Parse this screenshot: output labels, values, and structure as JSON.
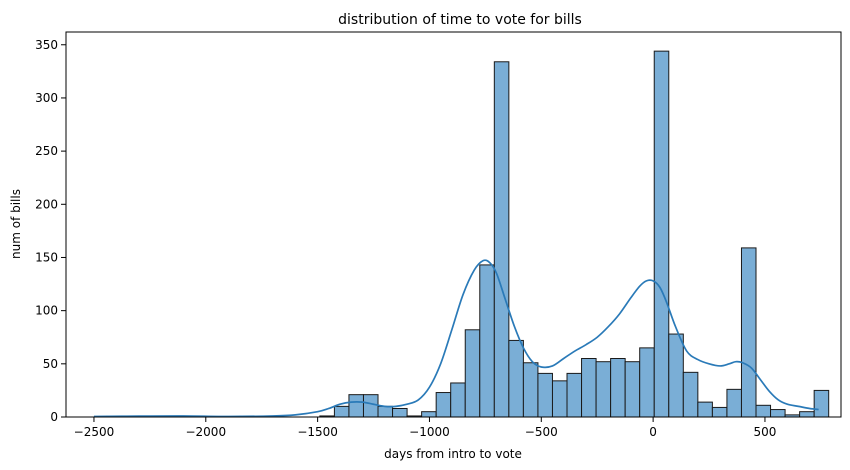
{
  "chart_data": {
    "type": "bar",
    "title": "distribution of time to vote for bills",
    "xlabel": "days from intro to vote",
    "ylabel": "num of bills",
    "xlim": [
      -2625,
      840
    ],
    "ylim": [
      0,
      362
    ],
    "xticks": [
      -2500,
      -2000,
      -1500,
      -1000,
      -500,
      0,
      500
    ],
    "xtick_labels": [
      "−2500",
      "−2000",
      "−1500",
      "−1000",
      "−500",
      "0",
      "500"
    ],
    "yticks": [
      0,
      50,
      100,
      150,
      200,
      250,
      300,
      350
    ],
    "grid": false,
    "legend": "none",
    "bar_color": "#7aaed6",
    "edge_color": "#1a1a1a",
    "kde_color": "#2a7ab8",
    "bin_width": 65,
    "bins": [
      {
        "x0": -1490,
        "value": 1
      },
      {
        "x0": -1425,
        "value": 10
      },
      {
        "x0": -1360,
        "value": 21
      },
      {
        "x0": -1295,
        "value": 21
      },
      {
        "x0": -1230,
        "value": 10
      },
      {
        "x0": -1165,
        "value": 8
      },
      {
        "x0": -1100,
        "value": 1
      },
      {
        "x0": -1035,
        "value": 5
      },
      {
        "x0": -970,
        "value": 23
      },
      {
        "x0": -905,
        "value": 32
      },
      {
        "x0": -840,
        "value": 82
      },
      {
        "x0": -775,
        "value": 143
      },
      {
        "x0": -710,
        "value": 334
      },
      {
        "x0": -645,
        "value": 72
      },
      {
        "x0": -580,
        "value": 51
      },
      {
        "x0": -515,
        "value": 41
      },
      {
        "x0": -450,
        "value": 34
      },
      {
        "x0": -385,
        "value": 41
      },
      {
        "x0": -320,
        "value": 55
      },
      {
        "x0": -255,
        "value": 52
      },
      {
        "x0": -190,
        "value": 55
      },
      {
        "x0": -125,
        "value": 52
      },
      {
        "x0": -60,
        "value": 65
      },
      {
        "x0": 5,
        "value": 344
      },
      {
        "x0": 70,
        "value": 78
      },
      {
        "x0": 135,
        "value": 42
      },
      {
        "x0": 200,
        "value": 14
      },
      {
        "x0": 265,
        "value": 9
      },
      {
        "x0": 330,
        "value": 26
      },
      {
        "x0": 395,
        "value": 159
      },
      {
        "x0": 460,
        "value": 11
      },
      {
        "x0": 525,
        "value": 7
      },
      {
        "x0": 590,
        "value": 2
      },
      {
        "x0": 655,
        "value": 5
      },
      {
        "x0": 720,
        "value": 25
      }
    ],
    "kde": {
      "x": [
        -2500,
        -2300,
        -2100,
        -1900,
        -1700,
        -1600,
        -1500,
        -1450,
        -1400,
        -1350,
        -1300,
        -1250,
        -1200,
        -1150,
        -1100,
        -1050,
        -1000,
        -950,
        -900,
        -850,
        -800,
        -760,
        -730,
        -700,
        -660,
        -620,
        -580,
        -540,
        -500,
        -450,
        -400,
        -350,
        -300,
        -250,
        -200,
        -150,
        -100,
        -60,
        -30,
        0,
        30,
        60,
        100,
        150,
        200,
        250,
        300,
        340,
        370,
        400,
        440,
        480,
        520,
        560,
        600,
        650,
        700,
        740
      ],
      "y": [
        0.5,
        0.8,
        1,
        0.5,
        1,
        2,
        5,
        8,
        12,
        14,
        14,
        12,
        10,
        10,
        12,
        16,
        28,
        50,
        82,
        115,
        138,
        147,
        145,
        135,
        110,
        85,
        65,
        52,
        47,
        48,
        55,
        62,
        68,
        75,
        85,
        97,
        112,
        123,
        128,
        128,
        122,
        108,
        85,
        62,
        54,
        50,
        48,
        50,
        52,
        51,
        46,
        35,
        24,
        16,
        12,
        10,
        8,
        7
      ]
    }
  }
}
